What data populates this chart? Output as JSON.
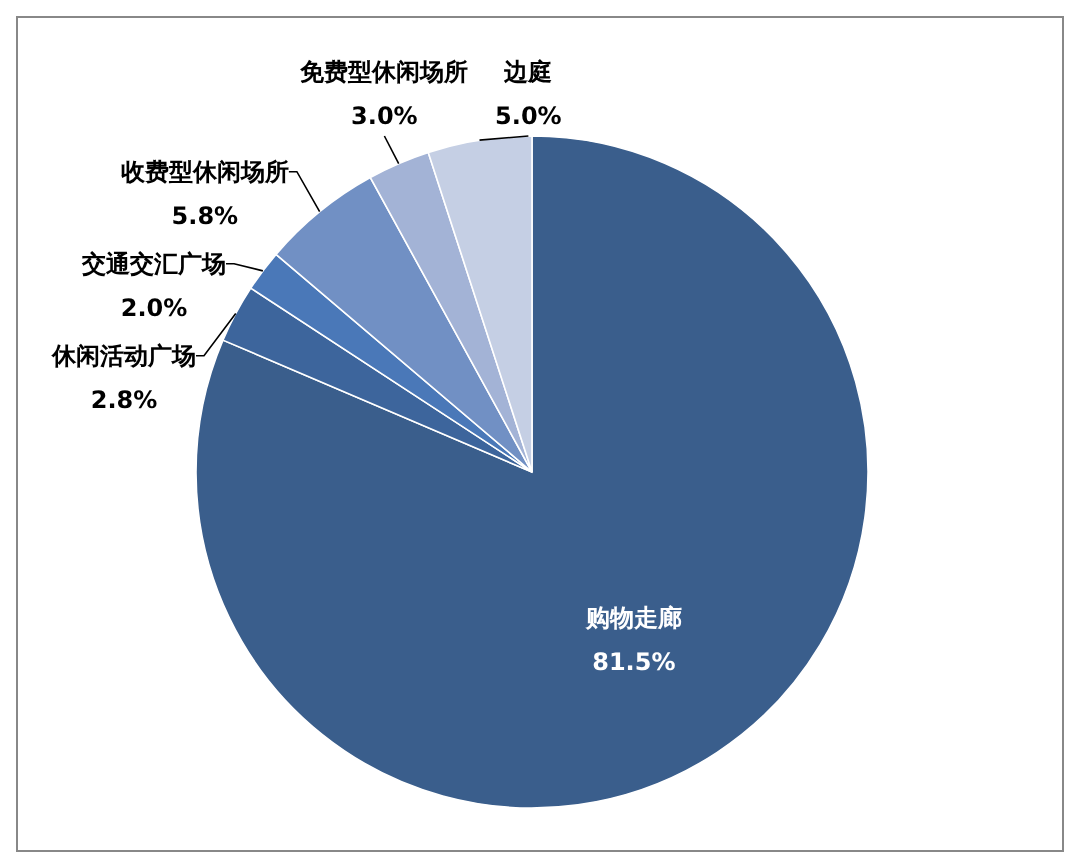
{
  "chart_data": {
    "type": "pie",
    "categories": [
      "购物走廊",
      "休闲活动广场",
      "交通交汇广场",
      "收费型休闲场所",
      "免费型休闲场所",
      "边庭"
    ],
    "values": [
      81.5,
      2.8,
      2.0,
      5.8,
      3.0,
      5.0
    ],
    "value_labels": [
      "81.5%",
      "2.8%",
      "2.0%",
      "5.8%",
      "3.0%",
      "5.0%"
    ],
    "colors": [
      "#3a5e8c",
      "#3d659c",
      "#4a78b8",
      "#7190c4",
      "#a3b3d6",
      "#c5cfe4"
    ]
  }
}
